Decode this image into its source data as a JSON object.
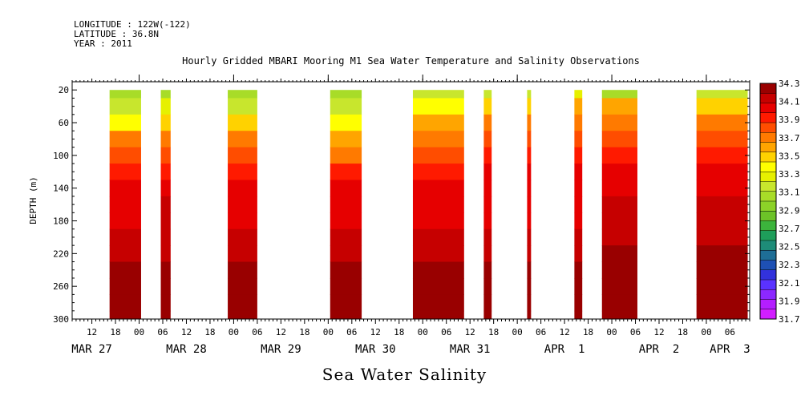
{
  "header": {
    "longitude": "LONGITUDE : 122W(-122)",
    "latitude": "LATITUDE : 36.8N",
    "year": "YEAR : 2011"
  },
  "caption": "Sea Water Salinity",
  "chart_data": {
    "type": "heatmap",
    "title": "Hourly Gridded MBARI Mooring M1 Sea Water Temperature and Salinity Observations",
    "ylabel": "DEPTH (m)",
    "xlabel": "",
    "y_reversed": true,
    "ylim": [
      300,
      10
    ],
    "y_ticks": [
      20,
      60,
      100,
      140,
      180,
      220,
      260,
      300
    ],
    "x_hour_ticks": [
      {
        "h": 12,
        "label": "12"
      },
      {
        "h": 18,
        "label": "18"
      },
      {
        "h": 24,
        "label": "00"
      },
      {
        "h": 30,
        "label": "06"
      },
      {
        "h": 36,
        "label": "12"
      },
      {
        "h": 42,
        "label": "18"
      },
      {
        "h": 48,
        "label": "00"
      },
      {
        "h": 54,
        "label": "06"
      },
      {
        "h": 60,
        "label": "12"
      },
      {
        "h": 66,
        "label": "18"
      },
      {
        "h": 72,
        "label": "00"
      },
      {
        "h": 78,
        "label": "06"
      },
      {
        "h": 84,
        "label": "12"
      },
      {
        "h": 90,
        "label": "18"
      },
      {
        "h": 96,
        "label": "00"
      },
      {
        "h": 102,
        "label": "06"
      },
      {
        "h": 108,
        "label": "12"
      },
      {
        "h": 114,
        "label": "18"
      },
      {
        "h": 120,
        "label": "00"
      },
      {
        "h": 126,
        "label": "06"
      },
      {
        "h": 132,
        "label": "12"
      },
      {
        "h": 138,
        "label": "18"
      },
      {
        "h": 144,
        "label": "00"
      },
      {
        "h": 150,
        "label": "06"
      },
      {
        "h": 156,
        "label": "12"
      },
      {
        "h": 162,
        "label": "18"
      },
      {
        "h": 168,
        "label": "00"
      },
      {
        "h": 174,
        "label": "06"
      }
    ],
    "date_labels": [
      {
        "h": 12,
        "label": "MAR 27"
      },
      {
        "h": 36,
        "label": "MAR 28"
      },
      {
        "h": 60,
        "label": "MAR 29"
      },
      {
        "h": 84,
        "label": "MAR 30"
      },
      {
        "h": 108,
        "label": "MAR 31"
      },
      {
        "h": 132,
        "label": "APR  1"
      },
      {
        "h": 156,
        "label": "APR  2"
      },
      {
        "h": 174,
        "label": "APR  3"
      }
    ],
    "legend": {
      "placement": "right",
      "levels": [
        "34.3",
        "34.1",
        "33.9",
        "33.7",
        "33.5",
        "33.3",
        "33.1",
        "32.9",
        "32.7",
        "32.5",
        "32.3",
        "32.1",
        "31.9",
        "31.7"
      ],
      "colors": [
        "#990000",
        "#c60000",
        "#e60000",
        "#ff1a00",
        "#ff4d00",
        "#ff7a00",
        "#ffa500",
        "#ffd200",
        "#ffff00",
        "#e6f000",
        "#c8e62d",
        "#a8dc28",
        "#8cd228",
        "#6cc228",
        "#3cb43c",
        "#1e9e5a",
        "#1e8c78",
        "#1e6e96",
        "#1e50b4",
        "#3232dc",
        "#5a32ff",
        "#8c28ff",
        "#b41eff",
        "#d21eff"
      ]
    },
    "depths": [
      20,
      40,
      60,
      80,
      100,
      120,
      140,
      160,
      180,
      200,
      220,
      240,
      260,
      280,
      300
    ],
    "segments": [
      {
        "start": 16.5,
        "end": 24.5,
        "values": [
          33.05,
          33.15,
          33.4,
          33.65,
          33.8,
          33.9,
          34.0,
          34.05,
          34.05,
          34.1,
          34.15,
          34.2,
          34.3,
          34.25,
          34.2
        ]
      },
      {
        "start": 29.5,
        "end": 32.0,
        "values": [
          33.1,
          33.25,
          33.5,
          33.75,
          33.85,
          33.95,
          34.05,
          34.1,
          34.1,
          34.1,
          34.15,
          34.2,
          34.3,
          34.25,
          34.2
        ]
      },
      {
        "start": 46.5,
        "end": 54.0,
        "values": [
          33.05,
          33.15,
          33.45,
          33.65,
          33.8,
          33.9,
          34.0,
          34.05,
          34.05,
          34.1,
          34.15,
          34.2,
          34.3,
          34.25,
          34.2
        ]
      },
      {
        "start": 72.5,
        "end": 80.5,
        "values": [
          33.05,
          33.2,
          33.4,
          33.6,
          33.75,
          33.9,
          34.0,
          34.05,
          34.05,
          34.1,
          34.15,
          34.2,
          34.3,
          34.25,
          34.2
        ]
      },
      {
        "start": 93.5,
        "end": 106.5,
        "values": [
          33.15,
          33.35,
          33.55,
          33.75,
          33.85,
          33.95,
          34.0,
          34.05,
          34.05,
          34.1,
          34.15,
          34.25,
          34.3,
          34.3,
          34.2
        ]
      },
      {
        "start": 111.5,
        "end": 113.5,
        "values": [
          33.2,
          33.45,
          33.7,
          33.85,
          33.95,
          34.0,
          34.05,
          34.05,
          34.05,
          34.1,
          34.15,
          34.2,
          34.3,
          34.25,
          34.2
        ]
      },
      {
        "start": 122.5,
        "end": 123.5,
        "values": [
          33.2,
          33.45,
          33.7,
          33.85,
          33.95,
          34.0,
          34.05,
          34.05,
          34.05,
          34.1,
          34.15,
          34.2,
          34.3,
          34.25,
          34.2
        ]
      },
      {
        "start": 134.5,
        "end": 136.5,
        "values": [
          33.3,
          33.55,
          33.75,
          33.85,
          33.95,
          34.0,
          34.05,
          34.05,
          34.05,
          34.1,
          34.15,
          34.2,
          34.3,
          34.25,
          34.2
        ]
      },
      {
        "start": 141.5,
        "end": 150.5,
        "values": [
          33.1,
          33.55,
          33.75,
          33.85,
          33.95,
          34.0,
          34.05,
          34.1,
          34.15,
          34.15,
          34.2,
          34.25,
          34.3,
          34.3,
          34.2
        ]
      },
      {
        "start": 165.5,
        "end": 178.5,
        "values": [
          33.15,
          33.5,
          33.75,
          33.85,
          33.95,
          34.0,
          34.05,
          34.1,
          34.15,
          34.15,
          34.2,
          34.25,
          34.3,
          34.25,
          34.2
        ]
      }
    ]
  }
}
